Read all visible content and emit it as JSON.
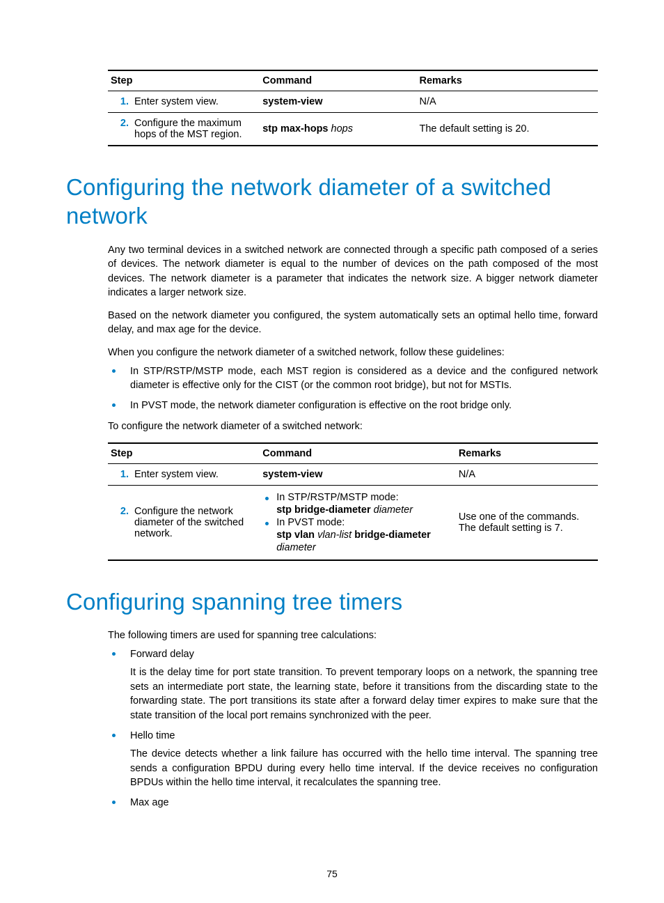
{
  "colors": {
    "accent": "#007fc5",
    "text": "#000000",
    "background": "#ffffff",
    "rule_heavy": "#000000",
    "rule_light": "#000000"
  },
  "typography": {
    "body_fontsize_pt": 11,
    "heading_fontsize_pt": 25,
    "heading_color": "#007fc5",
    "heading_weight": "300",
    "font_family": "Futura / sans-serif"
  },
  "page_number": "75",
  "table1": {
    "headers": {
      "step": "Step",
      "command": "Command",
      "remarks": "Remarks"
    },
    "rows": [
      {
        "num": "1.",
        "step": "Enter system view.",
        "command_bold": "system-view",
        "command_ital": "",
        "remarks": "N/A"
      },
      {
        "num": "2.",
        "step": "Configure the maximum hops of the MST region.",
        "command_bold": "stp max-hops",
        "command_ital": "hops",
        "remarks": "The default setting is 20."
      }
    ]
  },
  "section1_title": "Configuring the network diameter of a switched network",
  "section1_p1": "Any two terminal devices in a switched network are connected through a specific path composed of a series of devices. The network diameter is equal to the number of devices on the path composed of the most devices. The network diameter is a parameter that indicates the network size. A bigger network diameter indicates a larger network size.",
  "section1_p2": "Based on the network diameter you configured, the system automatically sets an optimal hello time, forward delay, and max age for the device.",
  "section1_p3": "When you configure the network diameter of a switched network, follow these guidelines:",
  "section1_bullets": [
    "In STP/RSTP/MSTP mode, each MST region is considered as a device and the configured network diameter is effective only for the CIST (or the common root bridge), but not for MSTIs.",
    "In PVST mode, the network diameter configuration is effective on the root bridge only."
  ],
  "section1_p4": "To configure the network diameter of a switched network:",
  "table2": {
    "headers": {
      "step": "Step",
      "command": "Command",
      "remarks": "Remarks"
    },
    "row1": {
      "num": "1.",
      "step": "Enter system view.",
      "command_bold": "system-view",
      "remarks": "N/A"
    },
    "row2": {
      "num": "2.",
      "step": "Configure the network diameter of the switched network.",
      "cmd_items": [
        {
          "label": "In STP/RSTP/MSTP mode:",
          "cmd_bold1": "stp bridge-diameter",
          "cmd_ital1": "diameter"
        },
        {
          "label": "In PVST mode:",
          "cmd_bold1": "stp vlan",
          "cmd_ital1": "vlan-list",
          "cmd_bold2": "bridge-diameter",
          "cmd_ital2": "diameter"
        }
      ],
      "remarks_l1": "Use one of the commands.",
      "remarks_l2": "The default setting is 7."
    }
  },
  "section2_title": "Configuring spanning tree timers",
  "section2_p1": "The following timers are used for spanning tree calculations:",
  "section2_items": [
    {
      "label": "Forward delay",
      "desc": "It is the delay time for port state transition. To prevent temporary loops on a network, the spanning tree sets an intermediate port state, the learning state, before it transitions from the discarding state to the forwarding state. The port transitions its state after a forward delay timer expires to make sure that the state transition of the local port remains synchronized with the peer."
    },
    {
      "label": "Hello time",
      "desc": "The device detects whether a link failure has occurred with the hello time interval. The spanning tree sends a configuration BPDU during every hello time interval. If the device receives no configuration BPDUs within the hello time interval, it recalculates the spanning tree."
    },
    {
      "label": "Max age",
      "desc": ""
    }
  ]
}
